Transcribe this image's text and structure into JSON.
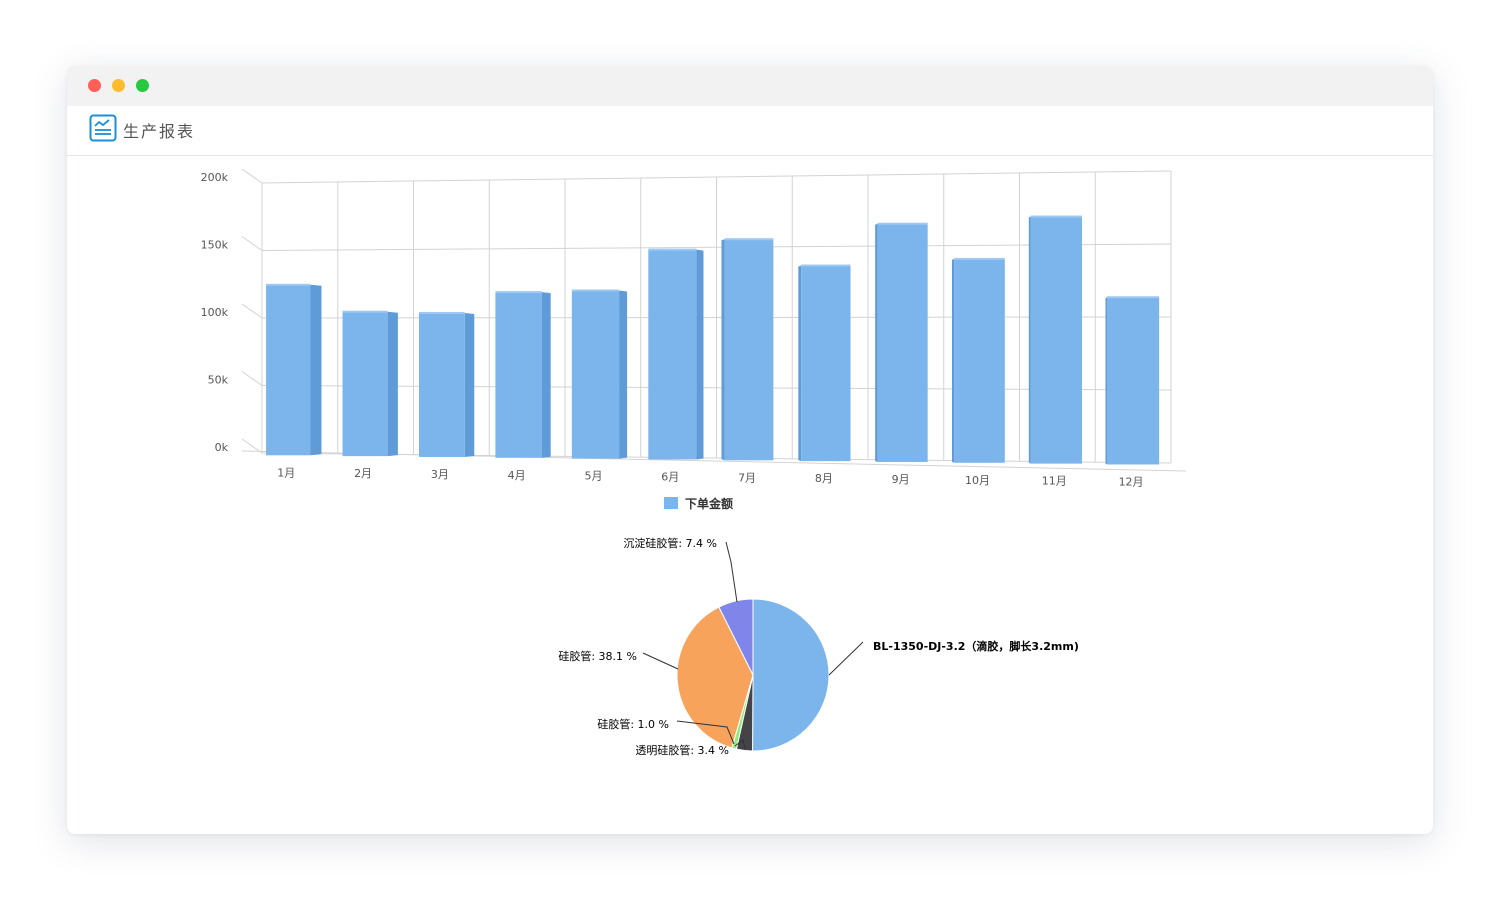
{
  "window": {
    "title": "生产报表"
  },
  "colors": {
    "bar_front": "#7cb5ec",
    "bar_side": "#5f9bd6",
    "bar_top": "#9fc9f2",
    "grid": "#d3d3d3",
    "axis_text": "#555555"
  },
  "chart_data": [
    {
      "type": "bar",
      "categories": [
        "1月",
        "2月",
        "3月",
        "4月",
        "5月",
        "6月",
        "7月",
        "8月",
        "9月",
        "10月",
        "11月",
        "12月"
      ],
      "series": [
        {
          "name": "下单金额",
          "values": [
            126000,
            106000,
            105000,
            120000,
            121000,
            150000,
            157000,
            138000,
            167000,
            142000,
            171000,
            115000
          ]
        }
      ],
      "ylim": [
        0,
        200000
      ],
      "ytick_labels": [
        "0k",
        "50k",
        "100k",
        "150k",
        "200k"
      ],
      "ytick_values": [
        0,
        50000,
        100000,
        150000,
        200000
      ],
      "grid": true,
      "legend": "bottom-center",
      "style": "3d-column"
    },
    {
      "type": "pie",
      "labels": [
        "BL-1350-DJ-3.2（滴胶，脚长3.2mm)",
        "透明硅胶管",
        "硅胶管",
        "硅胶管",
        "沉淀硅胶管"
      ],
      "values": [
        50.1,
        3.4,
        1.0,
        38.1,
        7.4
      ],
      "label_texts": [
        "BL-1350-DJ-3.2（滴胶，脚长3.2mm)",
        "透明硅胶管: 3.4 %",
        "硅胶管: 1.0 %",
        "硅胶管: 38.1 %",
        "沉淀硅胶管: 7.4 %"
      ],
      "colors": [
        "#7cb5ec",
        "#434348",
        "#90ed7d",
        "#f7a35c",
        "#8085e9"
      ]
    }
  ]
}
